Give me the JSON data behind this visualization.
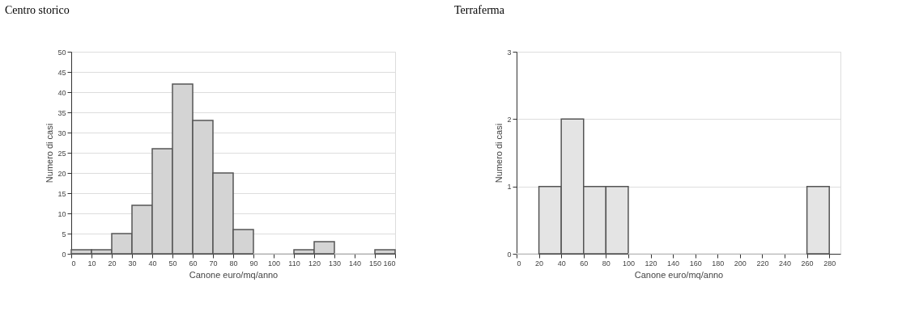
{
  "chart_data": [
    {
      "type": "histogram",
      "title": "Centro storico",
      "xlabel": "Canone euro/mq/anno",
      "ylabel": "Numero di casi",
      "bins": [
        0,
        10,
        20,
        30,
        40,
        50,
        60,
        70,
        80,
        90,
        100,
        110,
        120,
        130,
        140,
        150,
        160
      ],
      "values": [
        1,
        1,
        5,
        12,
        26,
        42,
        33,
        20,
        6,
        0,
        0,
        1,
        3,
        0,
        0,
        1
      ],
      "color": "#d4d4d4",
      "xlim": [
        0,
        160
      ],
      "xticks": [
        0,
        10,
        20,
        30,
        40,
        50,
        60,
        70,
        80,
        90,
        100,
        110,
        120,
        130,
        140,
        150,
        160
      ],
      "ylim": [
        0,
        50
      ],
      "yticks": [
        0,
        5,
        10,
        15,
        20,
        25,
        30,
        35,
        40,
        45,
        50
      ],
      "grid": "y"
    },
    {
      "type": "histogram",
      "title": "Terraferma",
      "xlabel": "Canone euro/mq/anno",
      "ylabel": "Numero di casi",
      "bins": [
        0,
        20,
        40,
        60,
        80,
        100,
        120,
        140,
        160,
        180,
        200,
        220,
        240,
        260,
        280
      ],
      "values": [
        0,
        1,
        2,
        1,
        1,
        0,
        0,
        0,
        0,
        0,
        0,
        0,
        0,
        1
      ],
      "color": "#e4e4e4",
      "xlim": [
        0,
        290
      ],
      "xticks": [
        0,
        20,
        40,
        60,
        80,
        100,
        120,
        140,
        160,
        180,
        200,
        220,
        240,
        260,
        280
      ],
      "ylim": [
        0,
        3
      ],
      "yticks": [
        0,
        1,
        2,
        3
      ],
      "grid": "y"
    }
  ]
}
